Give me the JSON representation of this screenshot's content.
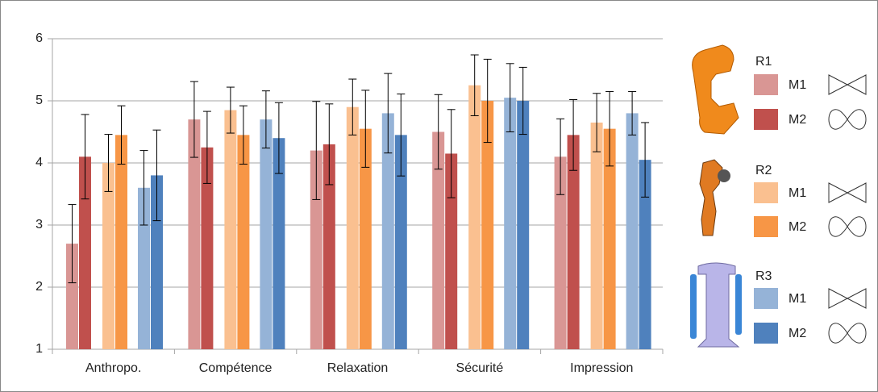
{
  "chart_data": {
    "type": "bar",
    "categories": [
      "Anthropo.",
      "Compétence",
      "Relaxation",
      "Sécurité",
      "Impression"
    ],
    "series": [
      {
        "group": "R1",
        "name": "M1",
        "color": "#d99694",
        "values": [
          2.7,
          4.7,
          4.2,
          4.5,
          4.1
        ],
        "errors": [
          0.63,
          0.61,
          0.79,
          0.6,
          0.61
        ]
      },
      {
        "group": "R1",
        "name": "M2",
        "color": "#c0504d",
        "values": [
          4.1,
          4.25,
          4.3,
          4.15,
          4.45
        ],
        "errors": [
          0.68,
          0.58,
          0.65,
          0.71,
          0.57
        ]
      },
      {
        "group": "R2",
        "name": "M1",
        "color": "#fac090",
        "values": [
          4.0,
          4.85,
          4.9,
          5.25,
          4.65
        ],
        "errors": [
          0.46,
          0.37,
          0.45,
          0.49,
          0.47
        ]
      },
      {
        "group": "R2",
        "name": "M2",
        "color": "#f79646",
        "values": [
          4.45,
          4.45,
          4.55,
          5.0,
          4.55
        ],
        "errors": [
          0.47,
          0.47,
          0.62,
          0.67,
          0.6
        ]
      },
      {
        "group": "R3",
        "name": "M1",
        "color": "#95b3d7",
        "values": [
          3.6,
          4.7,
          4.8,
          5.05,
          4.8
        ],
        "errors": [
          0.6,
          0.46,
          0.64,
          0.55,
          0.35
        ]
      },
      {
        "group": "R3",
        "name": "M2",
        "color": "#4f81bd",
        "values": [
          3.8,
          4.4,
          4.45,
          5.0,
          4.05
        ],
        "errors": [
          0.73,
          0.57,
          0.66,
          0.54,
          0.6
        ]
      }
    ],
    "ylim": [
      1,
      6
    ],
    "yticks": [
      1,
      2,
      3,
      4,
      5,
      6
    ],
    "grid": true,
    "legend": "right"
  }
}
